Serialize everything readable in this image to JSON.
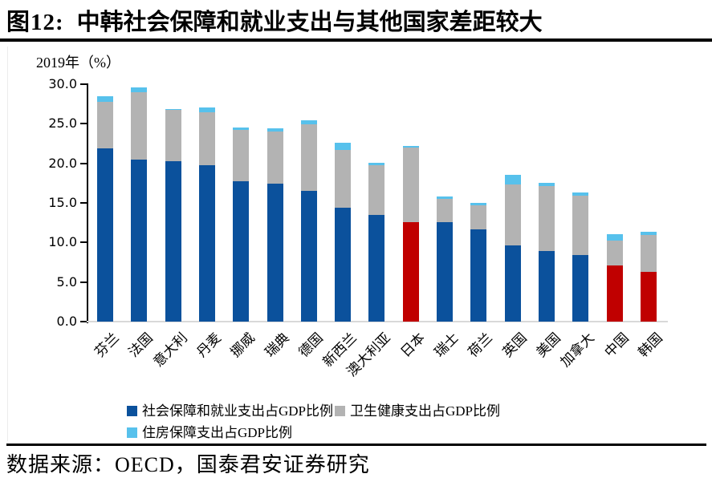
{
  "title": {
    "prefix": "图12:",
    "text": "中韩社会保障和就业支出与其他国家差距较大"
  },
  "chart_data": {
    "type": "bar",
    "stacked": true,
    "note": "2019年（%）",
    "title": "中韩社会保障和就业支出与其他国家差距较大",
    "xlabel": "",
    "ylabel": "",
    "ylim": [
      0,
      30
    ],
    "ytick_step": 5,
    "yticks": [
      "30.0",
      "25.0",
      "20.0",
      "15.0",
      "10.0",
      "5.0",
      "0.0"
    ],
    "grid": false,
    "legend_position": "bottom",
    "categories": [
      "芬兰",
      "法国",
      "意大利",
      "丹麦",
      "挪威",
      "瑞典",
      "德国",
      "新西兰",
      "澳大利亚",
      "日本",
      "瑞士",
      "荷兰",
      "英国",
      "美国",
      "加拿大",
      "中国",
      "韩国"
    ],
    "series": [
      {
        "name": "社会保障和就业支出占GDP比例",
        "color": "#0b519c",
        "values": [
          21.9,
          20.5,
          20.3,
          19.8,
          17.7,
          17.4,
          16.5,
          14.4,
          13.5,
          12.6,
          12.6,
          11.7,
          9.6,
          8.9,
          8.4,
          7.1,
          6.3
        ]
      },
      {
        "name": "卫生健康支出占GDP比例",
        "color": "#b3b3b3",
        "values": [
          5.9,
          8.5,
          6.4,
          6.6,
          6.5,
          6.6,
          8.4,
          7.3,
          6.3,
          9.4,
          2.9,
          3.0,
          7.7,
          8.2,
          7.5,
          3.1,
          4.6
        ]
      },
      {
        "name": "住房保障支出占GDP比例",
        "color": "#57c1ec",
        "values": [
          0.7,
          0.6,
          0.1,
          0.7,
          0.3,
          0.4,
          0.5,
          0.9,
          0.3,
          0.2,
          0.3,
          0.3,
          1.2,
          0.4,
          0.4,
          0.8,
          0.4
        ]
      }
    ],
    "highlight_color": "#c00000",
    "highlight_categories": [
      "日本",
      "中国",
      "韩国"
    ],
    "axis_color": "#000000",
    "baseline_color": "#d9d9d9"
  },
  "footer": {
    "text": "数据来源：OECD，国泰君安证券研究"
  }
}
